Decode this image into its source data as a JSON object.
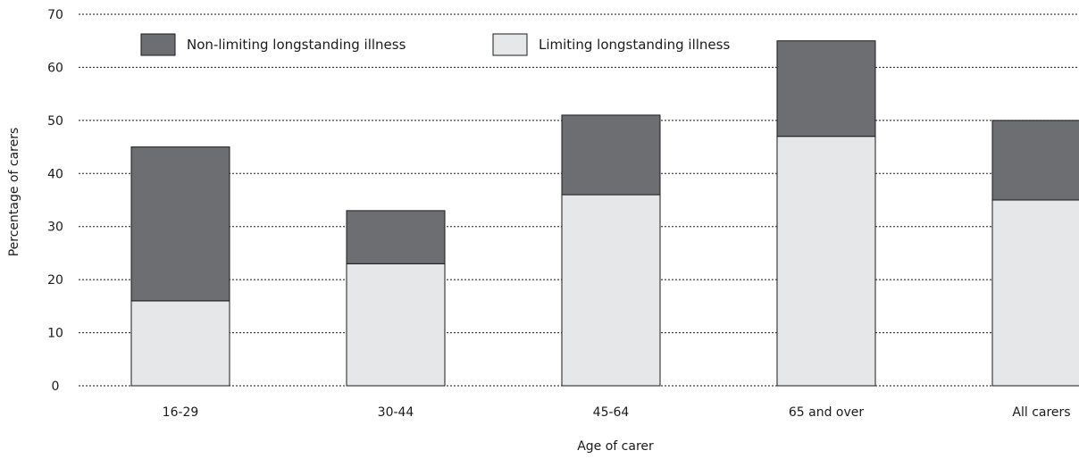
{
  "chart_data": {
    "type": "bar",
    "stacked": true,
    "title": "",
    "xlabel": "Age of carer",
    "ylabel": "Percentage of carers",
    "ylim": [
      0,
      70
    ],
    "yticks": [
      0,
      10,
      20,
      30,
      40,
      50,
      60,
      70
    ],
    "grid": true,
    "legend_position": "top",
    "categories": [
      "16-29",
      "30-44",
      "45-64",
      "65 and over",
      "All carers"
    ],
    "series": [
      {
        "name": "Limiting longstanding illness",
        "values": [
          16,
          23,
          36,
          47,
          35
        ],
        "color": "#e6e7e8"
      },
      {
        "name": "Non-limiting longstanding illness",
        "values": [
          29,
          10,
          15,
          18,
          15
        ],
        "color": "#6d6e71"
      }
    ],
    "legend_order": [
      1,
      0
    ]
  }
}
